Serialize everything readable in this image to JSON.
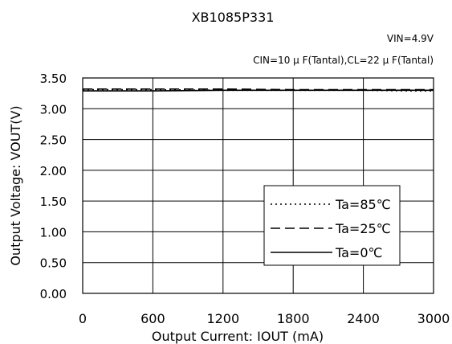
{
  "chart_data": {
    "type": "line",
    "title": "XB1085P331",
    "annotations": [
      "VIN=4.9V",
      "CIN=10 μ F(Tantal),CL=22 μ F(Tantal)"
    ],
    "xlabel": "Output Current: IOUT (mA)",
    "ylabel": "Output Voltage: VOUT(V)",
    "xlim": [
      0,
      3000
    ],
    "ylim": [
      0,
      3.5
    ],
    "xticks": [
      0,
      600,
      1200,
      1800,
      2400,
      3000
    ],
    "xtick_labels": [
      "0",
      "600",
      "1200",
      "1800",
      "2400",
      "3000"
    ],
    "yticks": [
      0,
      0.5,
      1.0,
      1.5,
      2.0,
      2.5,
      3.0,
      3.5
    ],
    "ytick_labels": [
      "0.00",
      "0.50",
      "1.00",
      "1.50",
      "2.00",
      "2.50",
      "3.00",
      "3.50"
    ],
    "grid": true,
    "legend_position": "bottom-right",
    "series": [
      {
        "name": "Ta=85℃",
        "style": "dotted",
        "x": [
          0,
          600,
          1200,
          1800,
          2400,
          2800,
          3000
        ],
        "y": [
          3.31,
          3.31,
          3.3,
          3.3,
          3.3,
          3.29,
          3.29
        ]
      },
      {
        "name": "Ta=25℃",
        "style": "dashed",
        "x": [
          0,
          600,
          1200,
          1800,
          2400,
          3000
        ],
        "y": [
          3.32,
          3.32,
          3.32,
          3.31,
          3.31,
          3.31
        ]
      },
      {
        "name": "Ta=0℃",
        "style": "solid",
        "x": [
          0,
          600,
          1200,
          1800,
          2400,
          3000
        ],
        "y": [
          3.29,
          3.29,
          3.3,
          3.3,
          3.3,
          3.3
        ]
      }
    ]
  }
}
